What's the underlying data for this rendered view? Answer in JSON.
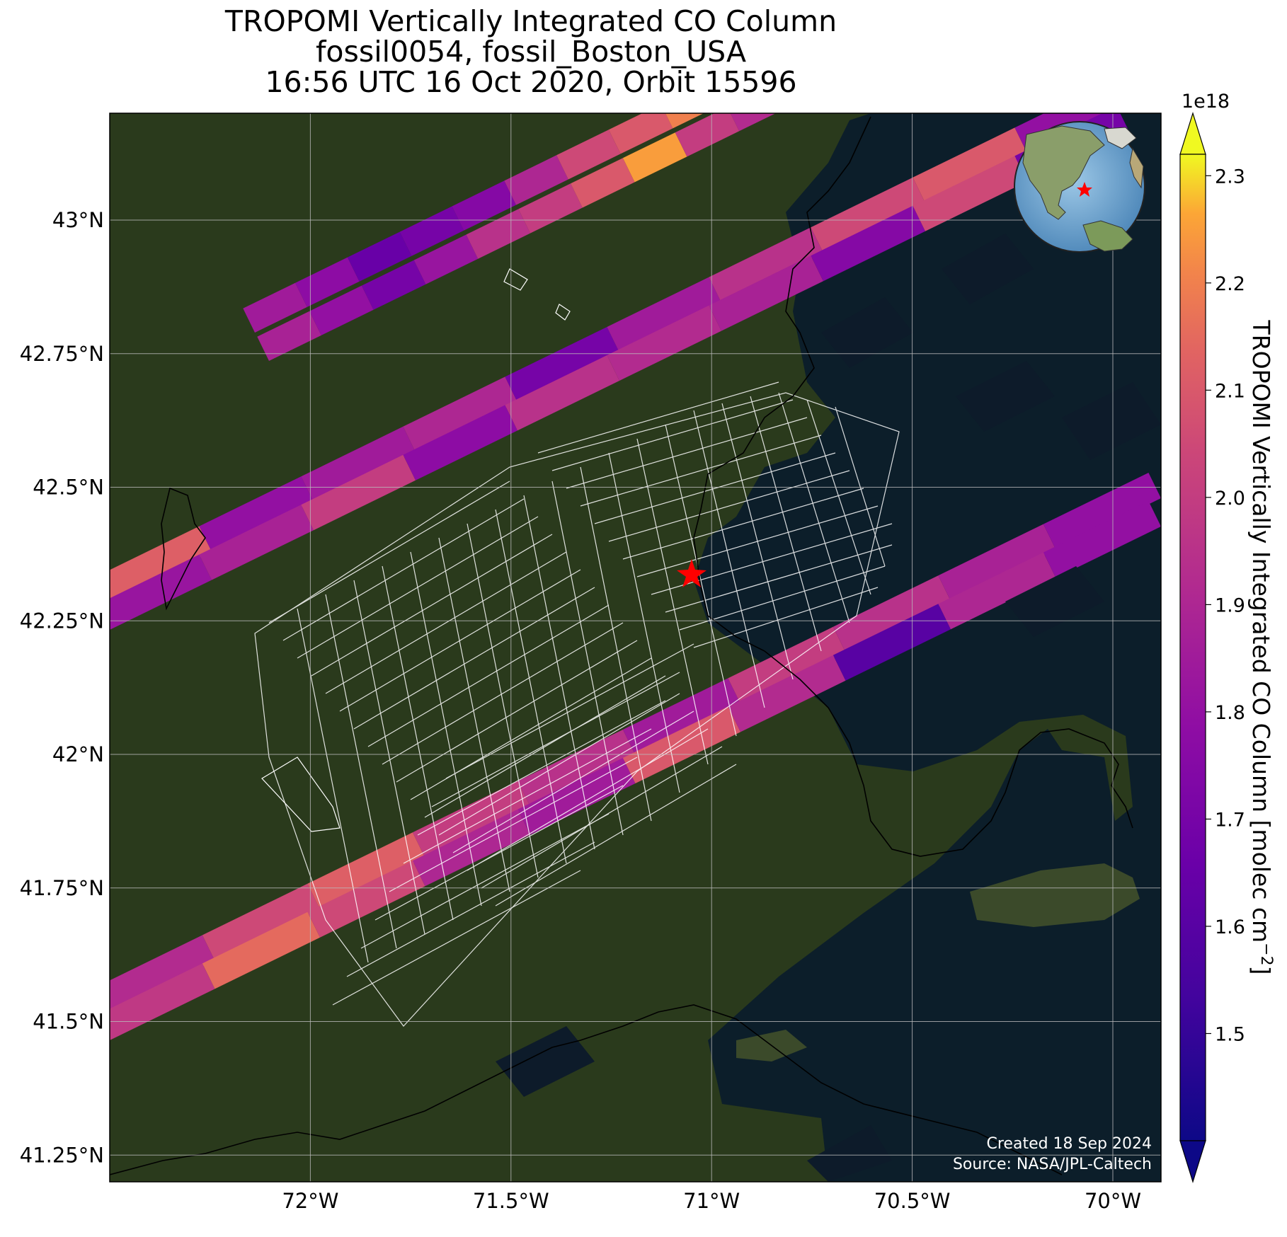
{
  "title": {
    "line1": "TROPOMI Vertically Integrated CO Column",
    "line2": "fossil0054, fossil_Boston_USA",
    "line3": "16:56 UTC 16 Oct 2020, Orbit 15596"
  },
  "map": {
    "extent": {
      "lon_min": -72.5,
      "lon_max": -69.88,
      "lat_min": 41.2,
      "lat_max": 43.2
    },
    "lon_ticks": [
      {
        "value": -72.0,
        "label": "72°W"
      },
      {
        "value": -71.5,
        "label": "71.5°W"
      },
      {
        "value": -71.0,
        "label": "71°W"
      },
      {
        "value": -70.5,
        "label": "70.5°W"
      },
      {
        "value": -70.0,
        "label": "70°W"
      }
    ],
    "lat_ticks": [
      {
        "value": 43.0,
        "label": "43°N"
      },
      {
        "value": 42.75,
        "label": "42.75°N"
      },
      {
        "value": 42.5,
        "label": "42.5°N"
      },
      {
        "value": 42.25,
        "label": "42.25°N"
      },
      {
        "value": 42.0,
        "label": "42°N"
      },
      {
        "value": 41.75,
        "label": "41.75°N"
      },
      {
        "value": 41.5,
        "label": "41.5°N"
      },
      {
        "value": 41.25,
        "label": "41.25°N"
      }
    ],
    "target": {
      "name": "fossil_Boston_USA",
      "lon": -71.06,
      "lat": 42.36,
      "marker_color": "#ff0000"
    },
    "gridlines": true
  },
  "colorbar": {
    "label": "TROPOMI Vertically Integrated CO Column [molec cm",
    "label_exp": "−2",
    "label_close": "]",
    "exponent": "1e18",
    "min": 1.4,
    "max": 2.32,
    "ticks": [
      "1.5",
      "1.6",
      "1.7",
      "1.8",
      "1.9",
      "2.0",
      "2.1",
      "2.2",
      "2.3"
    ],
    "colormap": "plasma",
    "extend": "both"
  },
  "credits": {
    "created": "Created 18 Sep 2024",
    "source": "Source: NASA/JPL-Caltech"
  },
  "colors": {
    "land": "#2a3a1c",
    "ocean": "#0c1e2a",
    "grid": "#bbbbbb",
    "ocean_pixel": "#0d1b2a"
  },
  "swaths": [
    {
      "id": "swath-top-upper",
      "values": [
        1.85,
        1.78,
        1.65,
        1.7,
        1.75,
        1.9,
        2.05,
        2.1,
        2.2,
        2.15
      ]
    },
    {
      "id": "swath-top-lower",
      "values": [
        1.88,
        1.8,
        1.7,
        1.82,
        1.95,
        2.0,
        2.1,
        2.25,
        2.0,
        1.92
      ]
    },
    {
      "id": "swath-middle-upper",
      "values": [
        2.12,
        1.8,
        1.85,
        1.9,
        1.7,
        1.85,
        1.95,
        2.05,
        2.1,
        1.8
      ]
    },
    {
      "id": "swath-middle-lower",
      "values": [
        1.82,
        1.88,
        2.0,
        1.78,
        1.95,
        1.92,
        1.88,
        1.75,
        2.05,
        1.7
      ]
    },
    {
      "id": "swath-bottom-upper",
      "values": [
        1.92,
        2.05,
        2.12,
        2.0,
        1.95,
        1.85,
        2.0,
        1.95,
        1.88,
        1.8
      ]
    },
    {
      "id": "swath-bottom-lower",
      "values": [
        1.98,
        2.15,
        2.05,
        1.9,
        1.85,
        2.1,
        1.92,
        1.6,
        1.9,
        1.8
      ]
    }
  ]
}
